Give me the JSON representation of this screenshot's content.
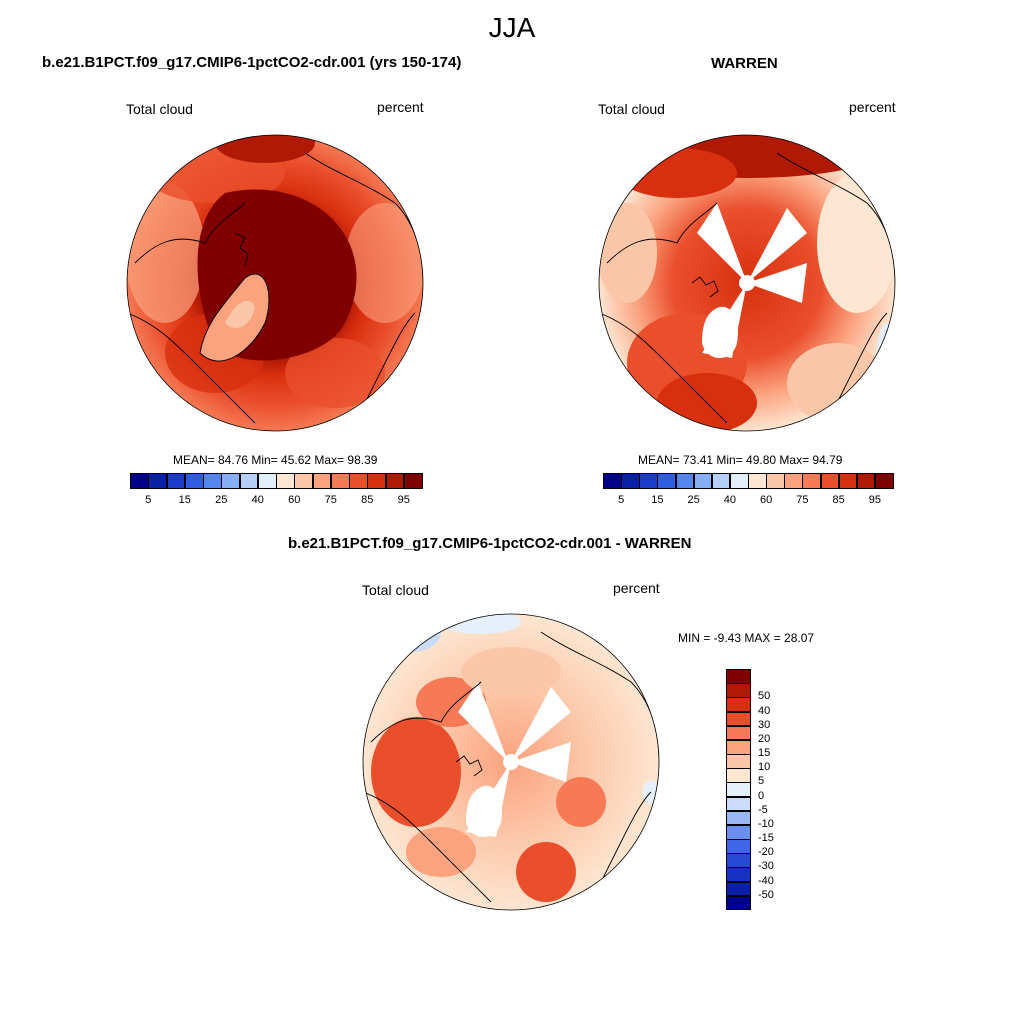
{
  "figure": {
    "season": "JJA",
    "panels": [
      {
        "title": "b.e21.B1PCT.f09_g17.CMIP6-1pctCO2-cdr.001 (yrs 150-174)",
        "left_label": "Total cloud",
        "right_label": "percent",
        "stats": "MEAN=  84.76  Min=  45.62  Max=  98.39",
        "mean": 84.76,
        "min": 45.62,
        "max": 98.39
      },
      {
        "title": "WARREN",
        "left_label": "Total cloud",
        "right_label": "percent",
        "stats": "MEAN=  73.41  Min=  49.80  Max=  94.79",
        "mean": 73.41,
        "min": 49.8,
        "max": 94.79
      },
      {
        "title": "b.e21.B1PCT.f09_g17.CMIP6-1pctCO2-cdr.001 - WARREN",
        "left_label": "Total cloud",
        "right_label": "percent",
        "stats": "MIN =  -9.43 MAX =  28.07",
        "min": -9.43,
        "max": 28.07
      }
    ],
    "abs_colorbar": {
      "colors": [
        "#00008b",
        "#0a1fa8",
        "#1a3cc8",
        "#2f5ce0",
        "#5585f0",
        "#86aef5",
        "#b6cff8",
        "#e3eefb",
        "#fde6d2",
        "#fcc7a8",
        "#fba27f",
        "#f57a55",
        "#ea4f2c",
        "#d8300f",
        "#b01a05",
        "#800000"
      ],
      "labels": [
        "5",
        "15",
        "25",
        "40",
        "60",
        "75",
        "85",
        "95"
      ]
    },
    "diff_colorbar": {
      "colors": [
        "#00008b",
        "#0a1fa8",
        "#1533c0",
        "#2649d8",
        "#3f66e8",
        "#6a8ff0",
        "#9bb8f5",
        "#cadcf9",
        "#e6f0fb",
        "#fde6d2",
        "#fcc7a8",
        "#fba27f",
        "#f57a55",
        "#ea4f2c",
        "#d8300f",
        "#b01a05",
        "#800000"
      ],
      "labels": [
        "-50",
        "-40",
        "-30",
        "-20",
        "-15",
        "-10",
        "-5",
        "0",
        "5",
        "10",
        "15",
        "20",
        "30",
        "40",
        "50"
      ]
    },
    "colors": {
      "ocean_fill_dark": "#8b0a00",
      "ocean_fill_mid": "#d8300f",
      "light_fill": "#fde6d2",
      "mask": "#ffffff",
      "coast": "#000000"
    }
  }
}
